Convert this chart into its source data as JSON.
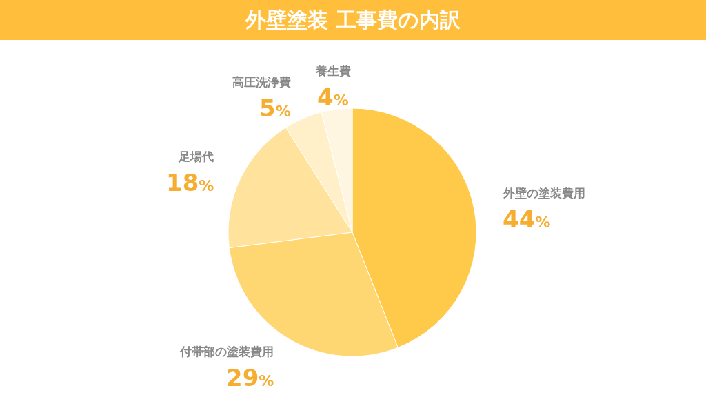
{
  "chart_data": {
    "type": "pie",
    "title": "外壁塗装 工事費の内訳",
    "categories": [
      "外壁の塗装費用",
      "付帯部の塗装費用",
      "足場代",
      "高圧洗浄費",
      "養生費"
    ],
    "values": [
      44,
      29,
      18,
      5,
      4
    ],
    "value_labels": [
      "44%",
      "29%",
      "18%",
      "5%",
      "4%"
    ],
    "colors": [
      "#ffc94a",
      "#ffd772",
      "#ffe39c",
      "#fff0c9",
      "#fff6e2"
    ],
    "legend": false
  }
}
